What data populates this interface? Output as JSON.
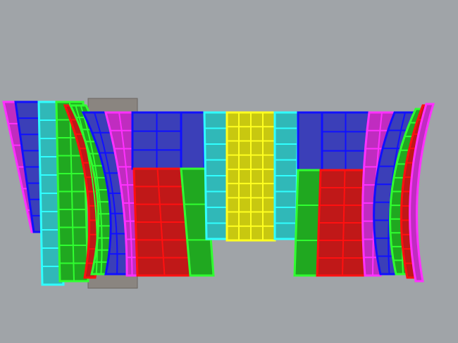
{
  "viewport": {
    "background": "#a0a4a8",
    "palette": {
      "blue": {
        "fill": "#3b3fb8",
        "stroke": "#1010ff"
      },
      "magenta": {
        "fill": "#c02cc0",
        "stroke": "#ff30ff"
      },
      "red": {
        "fill": "#c01818",
        "stroke": "#ff1010"
      },
      "green": {
        "fill": "#20a820",
        "stroke": "#30ff30"
      },
      "cyan": {
        "fill": "#30b8b8",
        "stroke": "#30ffff"
      },
      "yellow": {
        "fill": "#c8c810",
        "stroke": "#ffff20"
      },
      "gray": {
        "fill": "#8a8580",
        "stroke": "#6a6560"
      }
    }
  }
}
